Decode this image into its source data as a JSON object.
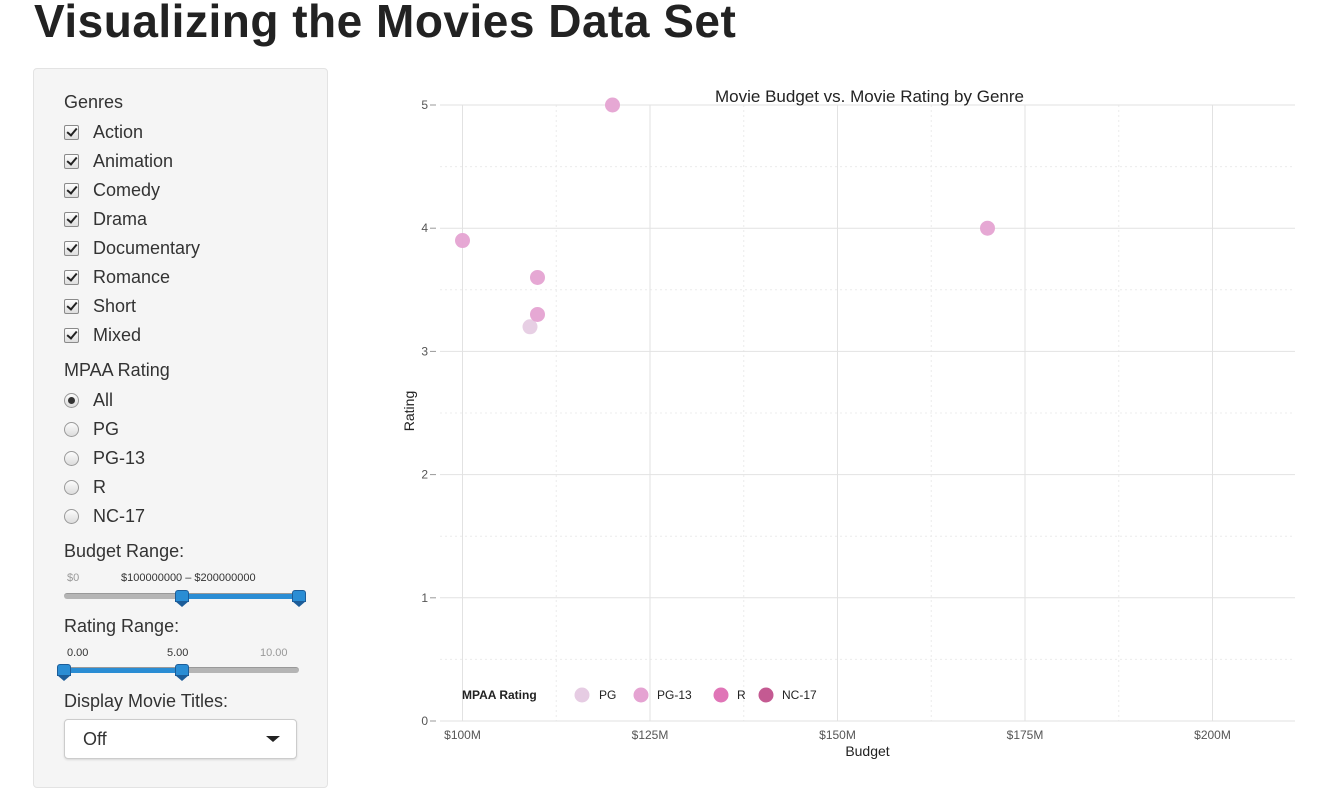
{
  "page": {
    "title": "Visualizing the Movies Data Set"
  },
  "sidebar": {
    "genres_label": "Genres",
    "genres": [
      {
        "label": "Action",
        "checked": true
      },
      {
        "label": "Animation",
        "checked": true
      },
      {
        "label": "Comedy",
        "checked": true
      },
      {
        "label": "Drama",
        "checked": true
      },
      {
        "label": "Documentary",
        "checked": true
      },
      {
        "label": "Romance",
        "checked": true
      },
      {
        "label": "Short",
        "checked": true
      },
      {
        "label": "Mixed",
        "checked": true
      }
    ],
    "mpaa_label": "MPAA Rating",
    "mpaa_options": [
      {
        "label": "All",
        "checked": true
      },
      {
        "label": "PG",
        "checked": false
      },
      {
        "label": "PG-13",
        "checked": false
      },
      {
        "label": "R",
        "checked": false
      },
      {
        "label": "NC-17",
        "checked": false
      }
    ],
    "budget_label": "Budget Range:",
    "budget_slider": {
      "min_label": "$0",
      "value_text": "$100000000 – $200000000",
      "low_fraction": 0.5,
      "high_fraction": 1.0
    },
    "rating_label": "Rating Range:",
    "rating_slider": {
      "min_label": "0.00",
      "mid_label": "5.00",
      "max_label": "10.00",
      "low_fraction": 0.0,
      "high_fraction": 0.5
    },
    "display_titles_label": "Display Movie Titles:",
    "display_titles_value": "Off"
  },
  "chart_data": {
    "type": "scatter",
    "title": "Movie Budget vs. Movie Rating by Genre",
    "xlabel": "Budget",
    "ylabel": "Rating",
    "xlim": [
      97000000,
      211000000
    ],
    "ylim": [
      0,
      5
    ],
    "x_ticks": [
      100000000,
      125000000,
      150000000,
      175000000,
      200000000
    ],
    "x_tick_labels": [
      "$100M",
      "$125M",
      "$150M",
      "$175M",
      "$200M"
    ],
    "y_ticks": [
      0,
      1,
      2,
      3,
      4,
      5
    ],
    "y_tick_labels": [
      "0",
      "1",
      "2",
      "3",
      "4",
      "5"
    ],
    "grid": true,
    "legend": {
      "title": "MPAA Rating",
      "placement": "bottom-left",
      "entries": [
        {
          "label": "PG",
          "color": "#e6cce3"
        },
        {
          "label": "PG-13",
          "color": "#e5a3d2"
        },
        {
          "label": "R",
          "color": "#e075b7"
        },
        {
          "label": "NC-17",
          "color": "#c45a92"
        }
      ]
    },
    "points": [
      {
        "x": 100000000,
        "y": 3.9,
        "rating": "PG-13"
      },
      {
        "x": 109000000,
        "y": 3.2,
        "rating": "PG"
      },
      {
        "x": 110000000,
        "y": 3.6,
        "rating": "PG-13"
      },
      {
        "x": 110000000,
        "y": 3.3,
        "rating": "PG-13"
      },
      {
        "x": 120000000,
        "y": 5.0,
        "rating": "PG-13"
      },
      {
        "x": 170000000,
        "y": 4.0,
        "rating": "PG-13"
      }
    ]
  }
}
